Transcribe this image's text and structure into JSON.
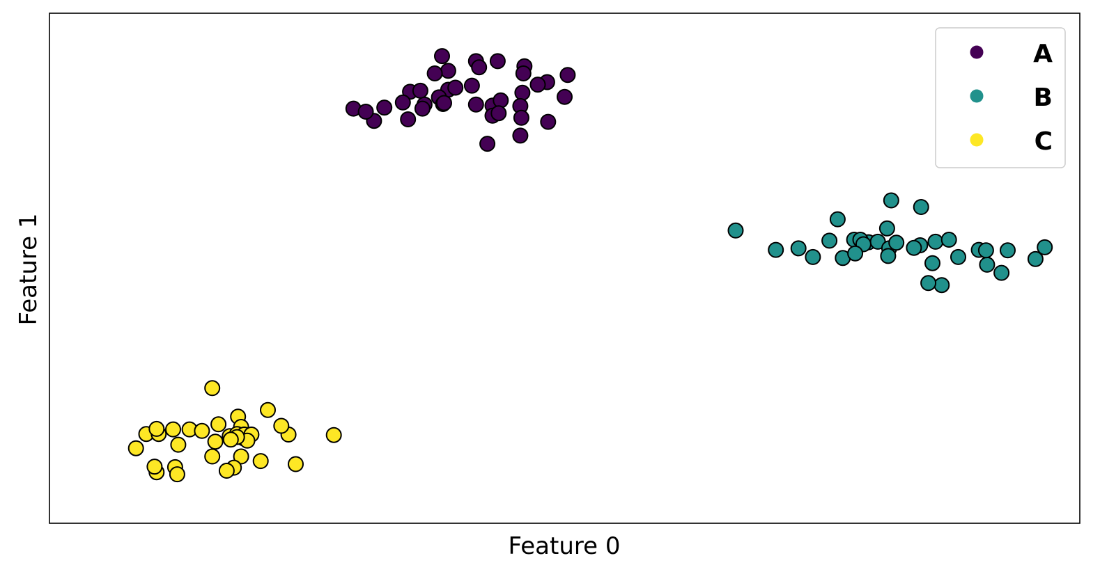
{
  "chart_data": {
    "type": "scatter",
    "xlabel": "Feature 0",
    "ylabel": "Feature 1",
    "xlim": [
      0,
      100
    ],
    "ylim": [
      0,
      100
    ],
    "xticks": false,
    "yticks": false,
    "grid": false,
    "legend_position": "top-right",
    "marker_edge_color": "#000000",
    "series": [
      {
        "name": "A",
        "color": "#440154",
        "points": [
          [
            38.1,
            91.6
          ],
          [
            41.4,
            90.6
          ],
          [
            43.5,
            90.6
          ],
          [
            46.1,
            89.6
          ],
          [
            38.7,
            88.7
          ],
          [
            41.7,
            89.4
          ],
          [
            46.0,
            88.2
          ],
          [
            48.3,
            86.5
          ],
          [
            50.3,
            87.9
          ],
          [
            37.4,
            88.2
          ],
          [
            38.7,
            85.0
          ],
          [
            39.4,
            85.4
          ],
          [
            35.0,
            84.6
          ],
          [
            36.0,
            84.8
          ],
          [
            37.8,
            83.5
          ],
          [
            41.0,
            85.8
          ],
          [
            45.9,
            84.4
          ],
          [
            47.4,
            86.0
          ],
          [
            50.0,
            83.6
          ],
          [
            29.5,
            81.3
          ],
          [
            32.5,
            81.5
          ],
          [
            34.3,
            82.5
          ],
          [
            36.4,
            82.1
          ],
          [
            38.2,
            82.2
          ],
          [
            38.3,
            82.4
          ],
          [
            41.4,
            82.1
          ],
          [
            45.7,
            81.8
          ],
          [
            31.5,
            78.9
          ],
          [
            34.8,
            79.2
          ],
          [
            30.7,
            80.7
          ],
          [
            36.2,
            81.3
          ],
          [
            43.0,
            81.9
          ],
          [
            43.8,
            82.9
          ],
          [
            43.0,
            79.9
          ],
          [
            43.6,
            80.4
          ],
          [
            45.8,
            79.5
          ],
          [
            48.4,
            78.7
          ],
          [
            45.7,
            76.0
          ],
          [
            42.5,
            74.4
          ]
        ]
      },
      {
        "name": "B",
        "color": "#21918c",
        "points": [
          [
            66.6,
            57.4
          ],
          [
            70.5,
            53.6
          ],
          [
            72.7,
            53.9
          ],
          [
            74.1,
            52.2
          ],
          [
            75.7,
            55.4
          ],
          [
            76.5,
            59.6
          ],
          [
            78.1,
            55.6
          ],
          [
            79.5,
            55.1
          ],
          [
            80.4,
            55.2
          ],
          [
            81.7,
            63.3
          ],
          [
            81.3,
            57.8
          ],
          [
            81.5,
            53.9
          ],
          [
            84.6,
            62.0
          ],
          [
            86.0,
            55.2
          ],
          [
            87.3,
            55.6
          ],
          [
            84.5,
            54.5
          ],
          [
            82.2,
            55.0
          ],
          [
            83.9,
            54.0
          ],
          [
            81.4,
            52.4
          ],
          [
            78.7,
            55.6
          ],
          [
            79.0,
            54.7
          ],
          [
            77.0,
            52.0
          ],
          [
            78.2,
            52.9
          ],
          [
            90.2,
            53.6
          ],
          [
            88.2,
            52.2
          ],
          [
            91.0,
            50.7
          ],
          [
            85.7,
            51.0
          ],
          [
            86.6,
            46.7
          ],
          [
            85.3,
            47.1
          ],
          [
            92.4,
            49.1
          ],
          [
            90.9,
            53.5
          ],
          [
            93.0,
            53.5
          ],
          [
            96.6,
            54.1
          ],
          [
            95.7,
            51.8
          ]
        ]
      },
      {
        "name": "C",
        "color": "#fde725",
        "points": [
          [
            15.8,
            26.5
          ],
          [
            8.4,
            14.7
          ],
          [
            10.4,
            10.0
          ],
          [
            12.2,
            11.0
          ],
          [
            12.5,
            15.4
          ],
          [
            16.1,
            16.0
          ],
          [
            18.8,
            16.7
          ],
          [
            15.8,
            13.1
          ],
          [
            9.4,
            17.5
          ],
          [
            10.6,
            17.5
          ],
          [
            10.4,
            18.5
          ],
          [
            12.0,
            18.4
          ],
          [
            13.6,
            18.4
          ],
          [
            14.8,
            18.1
          ],
          [
            16.4,
            19.4
          ],
          [
            17.5,
            17.1
          ],
          [
            18.3,
            20.9
          ],
          [
            18.6,
            18.9
          ],
          [
            18.2,
            17.5
          ],
          [
            18.9,
            17.4
          ],
          [
            19.6,
            17.4
          ],
          [
            19.2,
            16.2
          ],
          [
            18.2,
            16.9
          ],
          [
            17.6,
            16.4
          ],
          [
            21.2,
            22.2
          ],
          [
            23.2,
            17.4
          ],
          [
            22.5,
            19.1
          ],
          [
            27.6,
            17.3
          ],
          [
            18.6,
            13.1
          ],
          [
            17.9,
            10.9
          ],
          [
            17.2,
            10.3
          ],
          [
            20.5,
            12.2
          ],
          [
            23.9,
            11.6
          ],
          [
            12.4,
            9.6
          ],
          [
            10.2,
            11.1
          ]
        ]
      }
    ]
  }
}
